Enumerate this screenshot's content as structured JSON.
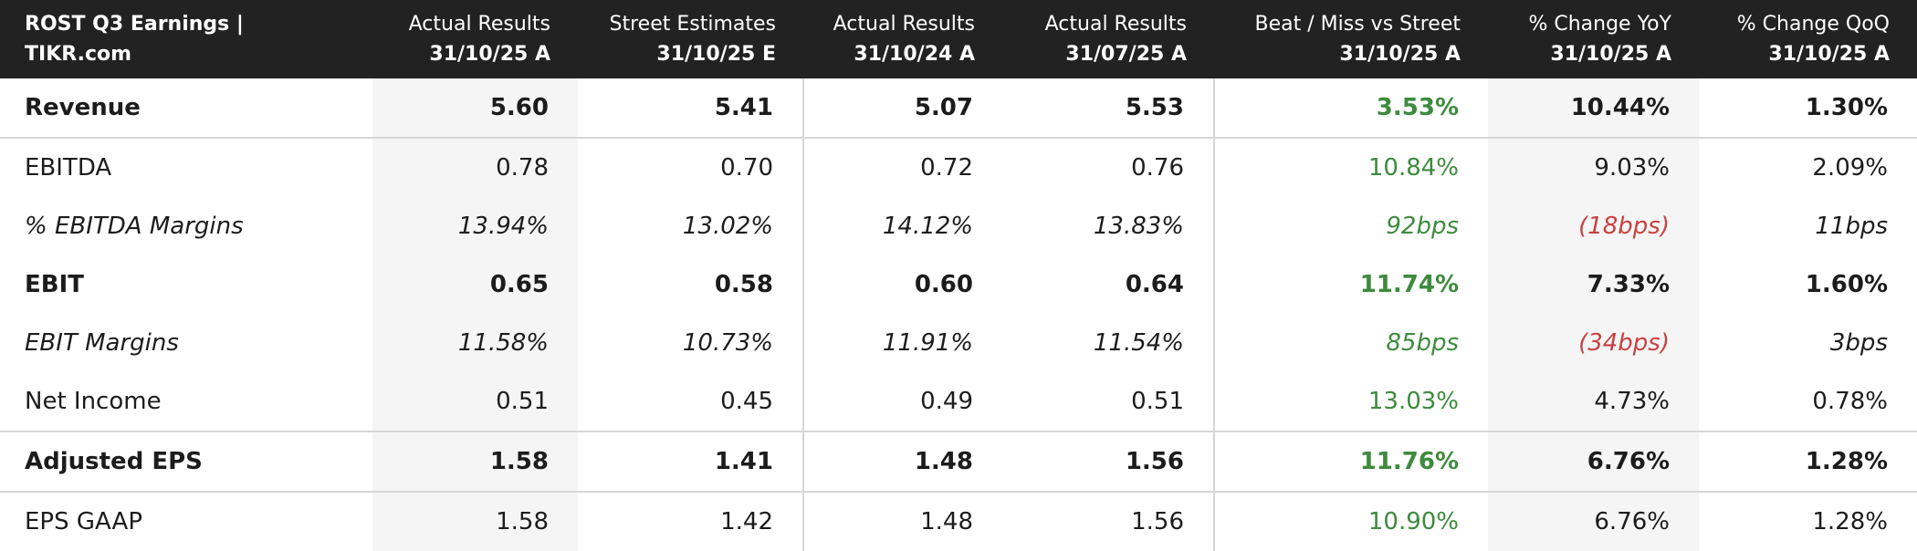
{
  "header": {
    "title": "ROST Q3 Earnings | TIKR.com"
  },
  "columns": [
    {
      "title": "Actual Results",
      "date": "31/10/25 A",
      "shaded": true
    },
    {
      "title": "Street Estimates",
      "date": "31/10/25 E",
      "divider": true
    },
    {
      "title": "Actual Results",
      "date": "31/10/24 A"
    },
    {
      "title": "Actual Results",
      "date": "31/07/25 A",
      "divider": true
    },
    {
      "title": "Beat / Miss vs Street",
      "date": "31/10/25 A",
      "color": "#3d8b3d"
    },
    {
      "title": "% Change YoY",
      "date": "31/10/25 A",
      "shaded": true
    },
    {
      "title": "% Change QoQ",
      "date": "31/10/25 A"
    }
  ],
  "negative_color": "#c94040",
  "rows": [
    {
      "label": "Revenue",
      "style": "bold",
      "divider": true,
      "values": [
        "5.60",
        "5.41",
        "5.07",
        "5.53",
        "3.53%",
        "10.44%",
        "1.30%"
      ]
    },
    {
      "label": "EBITDA",
      "style": "normal",
      "values": [
        "0.78",
        "0.70",
        "0.72",
        "0.76",
        "10.84%",
        "9.03%",
        "2.09%"
      ]
    },
    {
      "label": "% EBITDA Margins",
      "style": "italic",
      "values": [
        "13.94%",
        "13.02%",
        "14.12%",
        "13.83%",
        "92bps",
        "(18bps)",
        "11bps"
      ]
    },
    {
      "label": "EBIT",
      "style": "bold",
      "values": [
        "0.65",
        "0.58",
        "0.60",
        "0.64",
        "11.74%",
        "7.33%",
        "1.60%"
      ]
    },
    {
      "label": "EBIT Margins",
      "style": "italic",
      "values": [
        "11.58%",
        "10.73%",
        "11.91%",
        "11.54%",
        "85bps",
        "(34bps)",
        "3bps"
      ]
    },
    {
      "label": "Net Income",
      "style": "normal",
      "divider": true,
      "values": [
        "0.51",
        "0.45",
        "0.49",
        "0.51",
        "13.03%",
        "4.73%",
        "0.78%"
      ]
    },
    {
      "label": "Adjusted EPS",
      "style": "bold",
      "divider": true,
      "values": [
        "1.58",
        "1.41",
        "1.48",
        "1.56",
        "11.76%",
        "6.76%",
        "1.28%"
      ]
    },
    {
      "label": "EPS GAAP",
      "style": "normal",
      "values": [
        "1.58",
        "1.42",
        "1.48",
        "1.56",
        "10.90%",
        "6.76%",
        "1.28%"
      ]
    }
  ]
}
